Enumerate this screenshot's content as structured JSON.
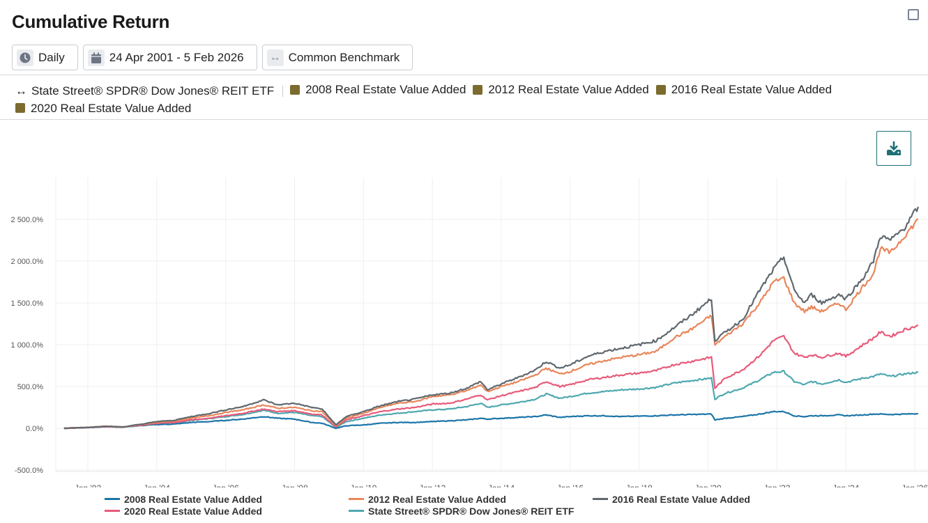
{
  "header": {
    "title": "Cumulative Return",
    "maximize_icon": "maximize-square-icon"
  },
  "controls": {
    "frequency": {
      "label": "Daily",
      "icon": "clock-icon"
    },
    "date_range": {
      "label": "24 Apr 2001 - 5 Feb 2026",
      "icon": "calendar-icon"
    },
    "benchmark": {
      "label": "Common Benchmark",
      "icon": "left-right-arrow-icon"
    }
  },
  "filters": {
    "benchmark_item": {
      "label": "State Street® SPDR® Dow Jones® REIT ETF",
      "icon": "left-right-arrow-icon"
    },
    "portfolios": [
      {
        "label": "2008 Real Estate Value Added",
        "color": "#7c6b2e"
      },
      {
        "label": "2012 Real Estate Value Added",
        "color": "#7c6b2e"
      },
      {
        "label": "2016 Real Estate Value Added",
        "color": "#7c6b2e"
      },
      {
        "label": "2020 Real Estate Value Added",
        "color": "#7c6b2e"
      }
    ]
  },
  "download": {
    "icon": "download-icon",
    "color": "#1e6f76"
  },
  "chart_data": {
    "type": "line",
    "title": "Cumulative Return",
    "xlabel": "",
    "ylabel": "",
    "x_range": [
      2001.31,
      2026.1
    ],
    "ylim": [
      -500,
      3000
    ],
    "grid": true,
    "legend_placement": "bottom",
    "y_ticks": [
      -500,
      0,
      500,
      1000,
      1500,
      2000,
      2500
    ],
    "y_tick_labels": [
      "-500.0%",
      "0.0%",
      "500.0%",
      "1 000.0%",
      "1 500.0%",
      "2 000.0%",
      "2 500.0%"
    ],
    "x_ticks": [
      2002,
      2004,
      2006,
      2008,
      2010,
      2012,
      2014,
      2016,
      2018,
      2020,
      2022,
      2024,
      2026
    ],
    "x_tick_labels": [
      "Jan '02",
      "Jan '04",
      "Jan '06",
      "Jan '08",
      "Jan '10",
      "Jan '12",
      "Jan '14",
      "Jan '16",
      "Jan '18",
      "Jan '20",
      "Jan '22",
      "Jan '24",
      "Jan '26"
    ],
    "x": [
      2001.31,
      2002.0,
      2002.5,
      2003.0,
      2003.5,
      2004.0,
      2004.5,
      2005.0,
      2005.5,
      2006.0,
      2006.5,
      2007.1,
      2007.5,
      2008.0,
      2008.5,
      2008.8,
      2009.2,
      2009.5,
      2010.0,
      2010.5,
      2011.0,
      2011.5,
      2012.0,
      2012.5,
      2013.0,
      2013.4,
      2013.6,
      2014.0,
      2014.5,
      2015.0,
      2015.3,
      2015.7,
      2016.0,
      2016.5,
      2017.0,
      2017.5,
      2018.0,
      2018.5,
      2019.0,
      2019.5,
      2020.1,
      2020.2,
      2020.5,
      2021.0,
      2021.5,
      2021.9,
      2022.2,
      2022.5,
      2022.8,
      2023.0,
      2023.3,
      2023.8,
      2024.0,
      2024.5,
      2024.8,
      2025.0,
      2025.3,
      2025.7,
      2026.1
    ],
    "series": [
      {
        "name": "2008 Real Estate Value Added",
        "color": "#1b75a8",
        "values": [
          0,
          10,
          20,
          15,
          30,
          45,
          50,
          70,
          80,
          95,
          110,
          140,
          120,
          110,
          70,
          60,
          0,
          30,
          40,
          60,
          70,
          70,
          80,
          90,
          100,
          120,
          110,
          120,
          130,
          140,
          160,
          130,
          140,
          150,
          150,
          140,
          145,
          150,
          160,
          165,
          170,
          100,
          120,
          140,
          170,
          200,
          200,
          150,
          140,
          150,
          150,
          160,
          150,
          160,
          170,
          170,
          165,
          170,
          175
        ]
      },
      {
        "name": "2012 Real Estate Value Added",
        "color": "#e8865a",
        "values": [
          0,
          10,
          25,
          15,
          40,
          70,
          85,
          120,
          150,
          190,
          220,
          280,
          240,
          250,
          210,
          200,
          30,
          120,
          180,
          250,
          300,
          320,
          380,
          400,
          450,
          520,
          440,
          500,
          560,
          640,
          720,
          650,
          680,
          760,
          810,
          850,
          880,
          920,
          1080,
          1180,
          1350,
          1000,
          1100,
          1250,
          1500,
          1750,
          1800,
          1500,
          1400,
          1450,
          1400,
          1500,
          1420,
          1700,
          1850,
          2150,
          2100,
          2300,
          2500
        ]
      },
      {
        "name": "2016 Real Estate Value Added",
        "color": "#5f686e",
        "values": [
          0,
          10,
          25,
          15,
          45,
          80,
          95,
          140,
          175,
          220,
          260,
          340,
          280,
          300,
          250,
          230,
          40,
          140,
          200,
          270,
          320,
          350,
          400,
          420,
          480,
          560,
          460,
          530,
          610,
          700,
          800,
          720,
          760,
          860,
          920,
          960,
          1000,
          1050,
          1200,
          1350,
          1550,
          1050,
          1150,
          1300,
          1650,
          1900,
          2050,
          1650,
          1500,
          1600,
          1500,
          1600,
          1550,
          1800,
          2000,
          2300,
          2250,
          2400,
          2650
        ]
      },
      {
        "name": "2020 Real Estate Value Added",
        "color": "#e85a7a",
        "values": [
          0,
          10,
          20,
          15,
          35,
          60,
          70,
          100,
          120,
          150,
          180,
          230,
          200,
          210,
          170,
          160,
          20,
          100,
          150,
          200,
          230,
          250,
          290,
          300,
          350,
          400,
          340,
          390,
          440,
          490,
          560,
          500,
          520,
          580,
          610,
          640,
          660,
          690,
          760,
          800,
          850,
          480,
          600,
          700,
          870,
          1050,
          1100,
          900,
          850,
          880,
          850,
          900,
          860,
          1000,
          1080,
          1150,
          1100,
          1180,
          1230
        ]
      },
      {
        "name": "State Street® SPDR® Dow Jones® REIT ETF",
        "color": "#4ea8af",
        "values": [
          0,
          10,
          20,
          15,
          35,
          55,
          65,
          95,
          115,
          140,
          165,
          215,
          180,
          190,
          150,
          140,
          10,
          80,
          120,
          160,
          180,
          200,
          220,
          230,
          260,
          300,
          250,
          280,
          310,
          350,
          410,
          360,
          380,
          420,
          440,
          460,
          470,
          490,
          540,
          570,
          600,
          350,
          420,
          480,
          580,
          670,
          680,
          560,
          520,
          560,
          530,
          580,
          550,
          600,
          620,
          650,
          620,
          650,
          670
        ]
      }
    ]
  }
}
